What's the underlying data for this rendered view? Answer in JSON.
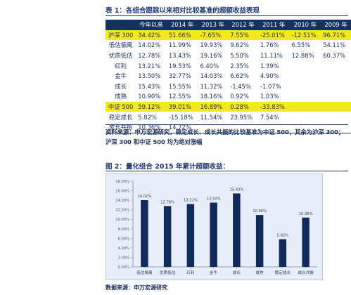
{
  "table1": {
    "caption": "表 1：各组合跟踪以来相对比较基准的超额收益表现",
    "headers": [
      "",
      "今年以来",
      "2014 年",
      "2013 年",
      "2012 年",
      "2011 年",
      "2010 年",
      "2009 年"
    ],
    "rows": [
      {
        "label": "沪深 300",
        "cells": [
          "34.42%",
          "51.66%",
          "-7.65%",
          "7.55%",
          "-25.01%",
          "-12.51%",
          "96.71%"
        ],
        "highlight": true
      },
      {
        "label": "低估偏离",
        "cells": [
          "14.02%",
          "11.99%",
          "19.93%",
          "9.62%",
          "1.76%",
          "6.55%",
          "54.11%"
        ]
      },
      {
        "label": "优质低估",
        "cells": [
          "12.78%",
          "13.43%",
          "19.16%",
          "5.50%",
          "11.11%",
          "12.88%",
          "60.37%"
        ]
      },
      {
        "label": "红利",
        "cells": [
          "13.21%",
          "19.53%",
          "6.40%",
          "2.35%",
          "1.39%",
          "",
          ""
        ]
      },
      {
        "label": "金牛",
        "cells": [
          "13.50%",
          "32.77%",
          "14.03%",
          "6.62%",
          "4.90%",
          "",
          ""
        ]
      },
      {
        "label": "成长",
        "cells": [
          "15.43%",
          "15.55%",
          "11.32%",
          "-1.45%",
          "-1.07%",
          "",
          ""
        ]
      },
      {
        "label": "成熟",
        "cells": [
          "10.90%",
          "12.55%",
          "18.16%",
          "0.92%",
          "1.03%",
          "",
          ""
        ]
      },
      {
        "label": "中证 500",
        "cells": [
          "59.12%",
          "39.01%",
          "16.89%",
          "0.28%",
          "-33.83%",
          "",
          ""
        ],
        "highlight": true
      },
      {
        "label": "稳定成长",
        "cells": [
          "5.82%",
          "-15.18%",
          "11.54%",
          "23.95%",
          "7.54%",
          "",
          ""
        ]
      },
      {
        "label": "成长共振",
        "cells": [
          "10.36%",
          "14.72%",
          "",
          "",
          "",
          "",
          ""
        ]
      }
    ],
    "note_lines": [
      "资料来源：申万宏源研究，稳定成长、成长共振的比较基准为中证 500，其余为沪深 300；",
      "沪深 300 和中证 500 均为绝对涨幅"
    ]
  },
  "figure2": {
    "caption": "图 2：量化组合 2015 年累计超额收益："
  },
  "chart_data": {
    "type": "bar",
    "title": "",
    "xlabel": "",
    "ylabel": "",
    "categories": [
      "低估偏离",
      "优质低估",
      "红利",
      "金牛",
      "成长",
      "成熟",
      "稳定成长",
      "成长共振"
    ],
    "values": [
      14.02,
      12.78,
      13.21,
      13.5,
      15.43,
      10.9,
      5.82,
      10.36
    ],
    "value_labels": [
      "14.02%",
      "12.78%",
      "13.21%",
      "13.50%",
      "15.43%",
      "10.90%",
      "5.82%",
      "10.36%"
    ],
    "ylim": [
      0,
      18
    ],
    "yticks": [
      0,
      2,
      4,
      6,
      8,
      10,
      12,
      14,
      16,
      18
    ],
    "ytick_labels": [
      "0.00%",
      "2.00%",
      "4.00%",
      "6.00%",
      "8.00%",
      "10.00%",
      "12.00%",
      "14.00%",
      "16.00%",
      "18.00%"
    ],
    "grid": false,
    "bar_color": "#112a5c",
    "background": "#e8eef9"
  },
  "source_line": "数据来源：申万宏源研究"
}
